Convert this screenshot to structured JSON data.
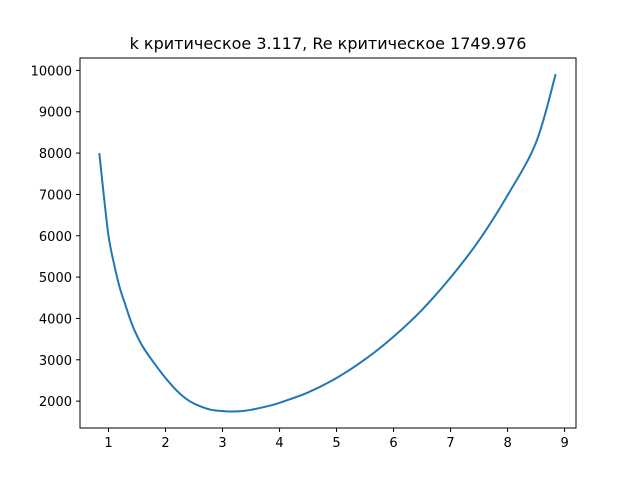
{
  "chart_data": {
    "type": "line",
    "title": "k критическое 3.117, Re критическое 1749.976",
    "xlabel": "",
    "ylabel": "",
    "xlim": [
      0.5,
      9.2
    ],
    "ylim": [
      1350,
      10300
    ],
    "x_ticks": [
      1,
      2,
      3,
      4,
      5,
      6,
      7,
      8,
      9
    ],
    "y_ticks": [
      2000,
      3000,
      4000,
      5000,
      6000,
      7000,
      8000,
      9000,
      10000
    ],
    "grid": false,
    "legend": "none",
    "series": [
      {
        "color": "#1f77b4",
        "x": [
          0.84,
          0.9,
          1.0,
          1.1,
          1.2,
          1.3,
          1.4,
          1.5,
          1.6,
          1.8,
          2.0,
          2.2,
          2.4,
          2.6,
          2.8,
          3.0,
          3.117,
          3.3,
          3.5,
          3.8,
          4.0,
          4.5,
          5.0,
          5.5,
          6.0,
          6.5,
          7.0,
          7.5,
          8.0,
          8.5,
          8.84
        ],
        "y": [
          7980,
          7200,
          6000,
          5300,
          4730,
          4310,
          3900,
          3580,
          3320,
          2920,
          2560,
          2250,
          2020,
          1880,
          1790,
          1760,
          1750,
          1755,
          1790,
          1880,
          1960,
          2210,
          2560,
          3010,
          3560,
          4210,
          4990,
          5890,
          6980,
          8260,
          9890
        ]
      }
    ]
  }
}
